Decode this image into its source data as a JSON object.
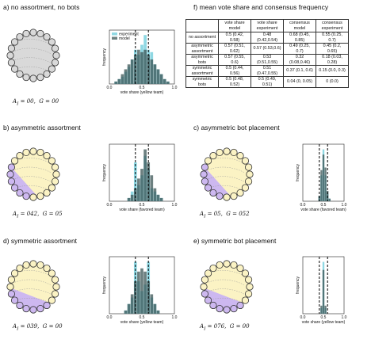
{
  "panels": {
    "a": {
      "title": "a) no assortment, no bots",
      "stat_a": "A",
      "stat_a_sub": "I",
      "stat_a_val": "00,",
      "stat_g": "G",
      "stat_g_val": "00"
    },
    "b": {
      "title": "b) asymmetric assortment",
      "stat_a": "A",
      "stat_a_sub": "I",
      "stat_a_val": "042,",
      "stat_g": "G",
      "stat_g_val": "05"
    },
    "c": {
      "title": "c) asymmetric bot placement",
      "stat_a": "A",
      "stat_a_sub": "I",
      "stat_a_val": "05,",
      "stat_g": "G",
      "stat_g_val": "052"
    },
    "d": {
      "title": "d) symmetric assortment",
      "stat_a": "A",
      "stat_a_sub": "I",
      "stat_a_val": "039,",
      "stat_g": "G",
      "stat_g_val": "00"
    },
    "e": {
      "title": "e) symmetric bot placement",
      "stat_a": "A",
      "stat_a_sub": "I",
      "stat_a_val": "076,",
      "stat_g": "G",
      "stat_g_val": "00"
    },
    "f": {
      "title": "f) mean vote share and consensus frequency"
    }
  },
  "table": {
    "headers": [
      "",
      "vote share model",
      "vote share experiment",
      "consensus model",
      "consensus experiment"
    ],
    "rows": [
      {
        "label": "no assortment",
        "cells": [
          "0.5 (0.42, 0.58)",
          "0.48 (0.42,0.54)",
          "0.68 (0.45, 0.85)",
          "0.55 (0.25, 0.7)"
        ]
      },
      {
        "label": "asymmetric assortment",
        "cells": [
          "0.57 (0.51, 0.62)",
          "0.57 (0.53,0.6)",
          "0.49 (0.25, 0.7)",
          "0.45 (0.2, 0.65)"
        ]
      },
      {
        "label": "asymmetric bots",
        "cells": [
          "0.57 (0.55, 0.6)",
          "0.53 (0.51,0.55)",
          "0.32 (0.08,0.46)",
          "0.18 (0.03, 0.28)"
        ]
      },
      {
        "label": "symmetric assortment",
        "cells": [
          "0.5 (0.44, 0.56)",
          "0.51 (0.47,0.55)",
          "0.37 (0.1, 0.6)",
          "0.15 (0.0, 0.3)"
        ]
      },
      {
        "label": "symmetric bots",
        "cells": [
          "0.5 (0.48, 0.52)",
          "0.5 (0.49, 0.51)",
          "0.04 (0, 0.05)",
          "0 (0.0)"
        ]
      }
    ]
  },
  "colors": {
    "yellow": "#fbf3c4",
    "purple": "#cdb8f0",
    "gray": "#d9d9d9",
    "experiment": "#8fd8e3",
    "model": "#3c5656"
  },
  "chart_data": [
    {
      "id": "a",
      "type": "bar",
      "xlabel": "vote share (yellow team)",
      "ylabel": "frequency",
      "xlim": [
        0.0,
        1.0
      ],
      "x_ticks": [
        "0.0",
        "0.5",
        "1.0"
      ],
      "dashed_lines": [
        0.4,
        0.6
      ],
      "series": [
        {
          "name": "experiment",
          "x": [
            0.1,
            0.15,
            0.2,
            0.25,
            0.3,
            0.35,
            0.4,
            0.45,
            0.5,
            0.55,
            0.6,
            0.65,
            0.7,
            0.75,
            0.8,
            0.85,
            0.9
          ],
          "values": [
            0.01,
            0.02,
            0.03,
            0.05,
            0.07,
            0.1,
            0.14,
            0.12,
            0.16,
            0.2,
            0.14,
            0.13,
            0.08,
            0.06,
            0.04,
            0.02,
            0.01
          ]
        },
        {
          "name": "model",
          "x": [
            0.1,
            0.15,
            0.2,
            0.25,
            0.3,
            0.35,
            0.4,
            0.45,
            0.5,
            0.55,
            0.6,
            0.65,
            0.7,
            0.75,
            0.8,
            0.85,
            0.9
          ],
          "values": [
            0.01,
            0.02,
            0.04,
            0.06,
            0.08,
            0.1,
            0.12,
            0.14,
            0.13,
            0.14,
            0.12,
            0.1,
            0.08,
            0.06,
            0.04,
            0.02,
            0.01
          ]
        }
      ],
      "legend": "top-left"
    },
    {
      "id": "b",
      "type": "bar",
      "xlabel": "vote share (favored team)",
      "ylabel": "frequency",
      "xlim": [
        0.0,
        1.0
      ],
      "x_ticks": [
        "0.0",
        "0.5",
        "1.0"
      ],
      "dashed_lines": [
        0.4,
        0.6
      ],
      "series": [
        {
          "name": "experiment",
          "x": [
            0.3,
            0.35,
            0.4,
            0.45,
            0.5,
            0.55,
            0.6,
            0.65,
            0.7,
            0.75,
            0.8
          ],
          "values": [
            0.01,
            0.03,
            0.12,
            0.05,
            0.08,
            0.14,
            0.1,
            0.04,
            0.03,
            0.02,
            0.01
          ]
        },
        {
          "name": "model",
          "x": [
            0.3,
            0.35,
            0.4,
            0.45,
            0.5,
            0.55,
            0.6,
            0.65,
            0.7,
            0.75,
            0.8
          ],
          "values": [
            0.01,
            0.02,
            0.04,
            0.07,
            0.1,
            0.16,
            0.12,
            0.08,
            0.04,
            0.02,
            0.01
          ]
        }
      ]
    },
    {
      "id": "c",
      "type": "bar",
      "xlabel": "vote share (favored team)",
      "ylabel": "frequency",
      "xlim": [
        0.0,
        1.0
      ],
      "x_ticks": [
        "0.0",
        "0.5",
        "1.0"
      ],
      "dashed_lines": [
        0.4,
        0.6
      ],
      "series": [
        {
          "name": "experiment",
          "x": [
            0.4,
            0.45,
            0.5,
            0.55,
            0.6,
            0.65
          ],
          "values": [
            0.02,
            0.1,
            0.2,
            0.1,
            0.03,
            0.01
          ]
        },
        {
          "name": "model",
          "x": [
            0.4,
            0.45,
            0.5,
            0.55,
            0.6,
            0.65
          ],
          "values": [
            0.02,
            0.12,
            0.18,
            0.13,
            0.04,
            0.01
          ]
        }
      ]
    },
    {
      "id": "d",
      "type": "bar",
      "xlabel": "vote share (yellow team)",
      "ylabel": "frequency",
      "xlim": [
        0.0,
        1.0
      ],
      "x_ticks": [
        "0.0",
        "0.5",
        "1.0"
      ],
      "dashed_lines": [
        0.4,
        0.6
      ],
      "series": [
        {
          "name": "experiment",
          "x": [
            0.25,
            0.3,
            0.35,
            0.4,
            0.45,
            0.5,
            0.55,
            0.6,
            0.65,
            0.7,
            0.75
          ],
          "values": [
            0.01,
            0.03,
            0.05,
            0.16,
            0.1,
            0.07,
            0.09,
            0.16,
            0.05,
            0.03,
            0.01
          ]
        },
        {
          "name": "model",
          "x": [
            0.25,
            0.3,
            0.35,
            0.4,
            0.45,
            0.5,
            0.55,
            0.6,
            0.65,
            0.7,
            0.75
          ],
          "values": [
            0.01,
            0.03,
            0.06,
            0.1,
            0.13,
            0.14,
            0.13,
            0.1,
            0.06,
            0.03,
            0.01
          ]
        }
      ]
    },
    {
      "id": "e",
      "type": "bar",
      "xlabel": "vote share (yellow team)",
      "ylabel": "frequency",
      "xlim": [
        0.0,
        1.0
      ],
      "x_ticks": [
        "0.0",
        "0.5",
        "1.0"
      ],
      "dashed_lines": [
        0.4,
        0.6
      ],
      "series": [
        {
          "name": "experiment",
          "x": [
            0.45,
            0.5,
            0.55
          ],
          "values": [
            0.05,
            0.45,
            0.05
          ]
        },
        {
          "name": "model",
          "x": [
            0.45,
            0.5,
            0.55
          ],
          "values": [
            0.07,
            0.38,
            0.07
          ]
        }
      ]
    }
  ]
}
